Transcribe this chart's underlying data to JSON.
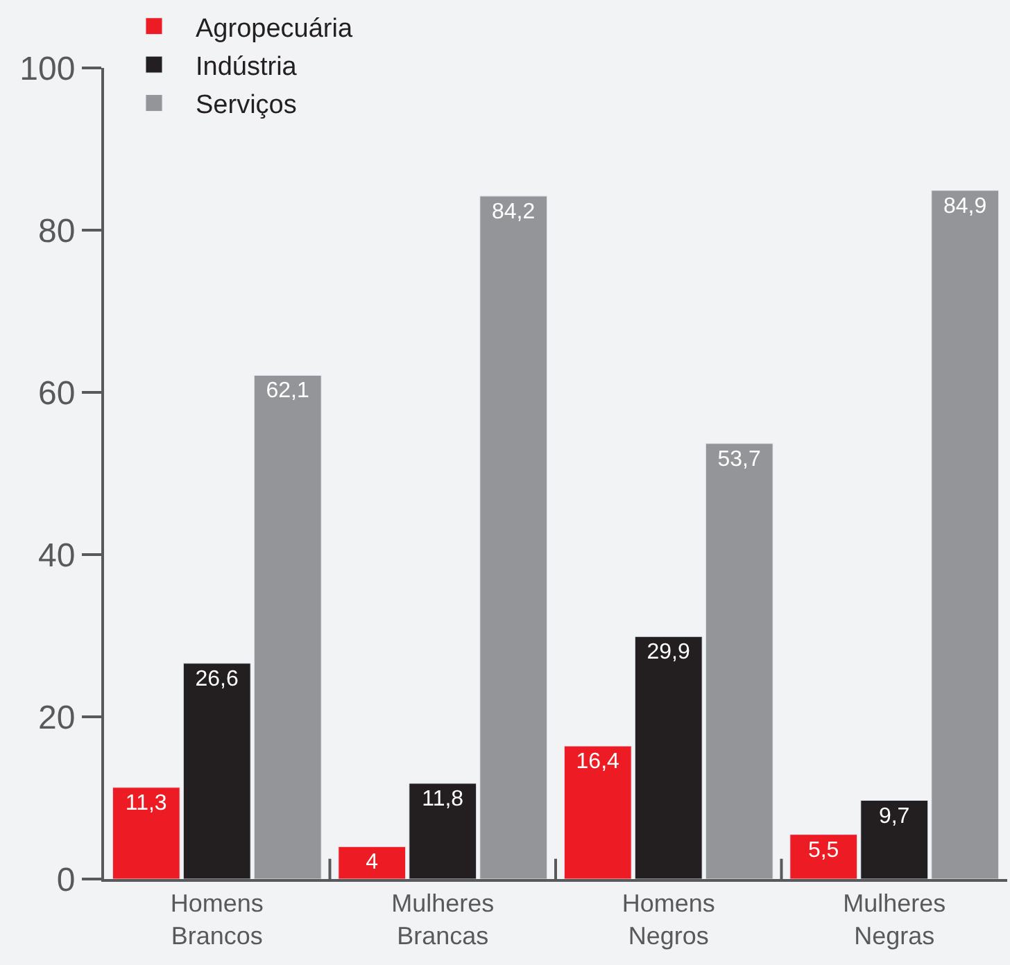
{
  "chart_data": {
    "type": "bar",
    "categories": [
      "Homens\nBrancos",
      "Mulheres\nBrancas",
      "Homens\nNegros",
      "Mulheres\nNegras"
    ],
    "series": [
      {
        "name": "Agropecuária",
        "color": "#ed1c24",
        "values": [
          11.3,
          4,
          16.4,
          5.5
        ],
        "value_labels": [
          "11,3",
          "4",
          "16,4",
          "5,5"
        ]
      },
      {
        "name": "Indústria",
        "color": "#231f20",
        "values": [
          26.6,
          11.8,
          29.9,
          9.7
        ],
        "value_labels": [
          "26,6",
          "11,8",
          "29,9",
          "9,7"
        ]
      },
      {
        "name": "Serviços",
        "color": "#939598",
        "values": [
          62.1,
          84.2,
          53.7,
          84.9
        ],
        "value_labels": [
          "62,1",
          "84,2",
          "53,7",
          "84,9"
        ]
      }
    ],
    "ylim": [
      0,
      100
    ],
    "yticks": [
      0,
      20,
      40,
      60,
      80,
      100
    ],
    "grid": false,
    "legend": "top"
  }
}
